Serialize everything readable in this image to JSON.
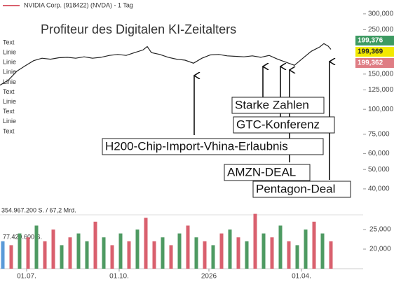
{
  "header": "NVIDIA Corp. (918422) (NVDA) - 1 Tag",
  "left_labels": [
    "Text",
    "Linie",
    "Linie",
    "Linie",
    "Linie",
    "Text",
    "Linie",
    "Text",
    "Linie",
    "Text"
  ],
  "price_labels": [
    {
      "label": "199,376",
      "color": "#3d9a62"
    },
    {
      "label": "199,369",
      "color": "#f3e900"
    },
    {
      "label": "199,362",
      "color": "#df7d84"
    }
  ],
  "chart_data": [
    {
      "type": "line",
      "title": "Profiteur des Digitalen KI-Zeitalters",
      "color": "#222222",
      "log_scale": true,
      "x": [
        0,
        6,
        12,
        18,
        24,
        30,
        36,
        42,
        48,
        54,
        60,
        66,
        72,
        78,
        84,
        90,
        96,
        102,
        105,
        108,
        114,
        120,
        126,
        132,
        138,
        144,
        150,
        156,
        162,
        168,
        174,
        180,
        186,
        192,
        198,
        204,
        210,
        216,
        222,
        228,
        231,
        234,
        236
      ],
      "values": [
        132000,
        140000,
        155000,
        165000,
        175000,
        180000,
        178000,
        181000,
        182000,
        180000,
        183000,
        180000,
        182000,
        186000,
        188000,
        186000,
        192000,
        198000,
        206000,
        192000,
        188000,
        182000,
        178000,
        176000,
        170000,
        180000,
        187000,
        188000,
        185000,
        184000,
        183000,
        185000,
        182000,
        186000,
        178000,
        172000,
        166000,
        180000,
        195000,
        205000,
        213000,
        207000,
        199369
      ],
      "xlim": [
        0,
        259
      ],
      "xticks": [
        {
          "value": 19,
          "label": "01.07."
        },
        {
          "value": 85,
          "label": "01.10."
        },
        {
          "value": 149,
          "label": "2026"
        },
        {
          "value": 215,
          "label": "01.04."
        }
      ],
      "ylim": [
        36000,
        330000
      ],
      "yticks": [
        {
          "value": 300000,
          "label": "300,000"
        },
        {
          "value": 250000,
          "label": "250,000"
        },
        {
          "value": 150000,
          "label": "150,000"
        },
        {
          "value": 125000,
          "label": "125,000"
        },
        {
          "value": 100000,
          "label": "100,000"
        },
        {
          "value": 75000,
          "label": "75,000"
        },
        {
          "value": 60000,
          "label": "60,000"
        },
        {
          "value": 50000,
          "label": "50,000"
        },
        {
          "value": 40000,
          "label": "40,000"
        }
      ],
      "annotations": [
        "Starke Zahlen",
        "GTC-Konferenz",
        "H200-Chip-Import-Vhina-Erlaubnis",
        "AMZN-DEAL",
        "Pentagon-Deal"
      ]
    },
    {
      "type": "bar",
      "title": "354.967.200 S. / 67,2 Mrd.",
      "subtitle": "77.429.600 S.",
      "x": [
        2,
        8,
        14,
        20,
        26,
        32,
        38,
        44,
        50,
        56,
        62,
        68,
        74,
        80,
        86,
        92,
        98,
        104,
        110,
        116,
        122,
        128,
        134,
        140,
        146,
        152,
        158,
        164,
        170,
        176,
        182,
        188,
        194,
        200,
        206,
        212,
        218,
        224,
        230,
        236
      ],
      "values": [
        22000,
        21000,
        24000,
        23000,
        26000,
        22000,
        25000,
        21000,
        23000,
        24000,
        22000,
        27000,
        23000,
        21000,
        24000,
        22000,
        25000,
        28000,
        22000,
        23000,
        21000,
        24000,
        26000,
        23000,
        22000,
        21000,
        24000,
        25000,
        23000,
        22000,
        29000,
        24000,
        23000,
        26000,
        22000,
        21000,
        25000,
        27000,
        24000,
        22000
      ],
      "colors": [
        "#5a9ad8",
        "#d9606e",
        "#4e9a62",
        "#d9606e",
        "#4e9a62",
        "#d9606e",
        "#d9606e",
        "#4e9a62",
        "#d9606e",
        "#4e9a62",
        "#4e9a62",
        "#d9606e",
        "#4e9a62",
        "#d9606e",
        "#4e9a62",
        "#d9606e",
        "#4e9a62",
        "#d9606e",
        "#d9606e",
        "#4e9a62",
        "#d9606e",
        "#4e9a62",
        "#d9606e",
        "#4e9a62",
        "#d9606e",
        "#4e9a62",
        "#d9606e",
        "#4e9a62",
        "#d9606e",
        "#4e9a62",
        "#d9606e",
        "#4e9a62",
        "#d9606e",
        "#4e9a62",
        "#d9606e",
        "#4e9a62",
        "#4e9a62",
        "#d9606e",
        "#4e9a62",
        "#d9606e"
      ],
      "ylim": [
        15000,
        30000
      ],
      "yticks": [
        {
          "value": 25000,
          "label": "25,000"
        },
        {
          "value": 20000,
          "label": "20,000"
        }
      ]
    }
  ]
}
